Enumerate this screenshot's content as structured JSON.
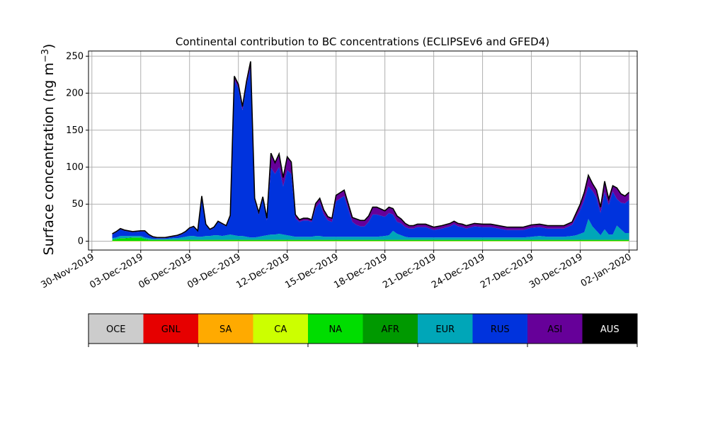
{
  "chart_data": {
    "type": "area",
    "stacked": true,
    "title": "Continental contribution to BC concentrations (ECLIPSEv6 and GFED4)",
    "ylabel_main": "Surface concentration (ng m",
    "ylabel_sup": "−3",
    "ylabel_close": ")",
    "ylim": [
      -12,
      257
    ],
    "yticks": [
      0,
      50,
      100,
      150,
      200,
      250
    ],
    "xlim": [
      "2019-11-29T19:00",
      "2020-01-02T12:00"
    ],
    "xticks": [
      "2019-11-30",
      "2019-12-03",
      "2019-12-06",
      "2019-12-09",
      "2019-12-12",
      "2019-12-15",
      "2019-12-18",
      "2019-12-21",
      "2019-12-24",
      "2019-12-27",
      "2019-12-30",
      "2020-01-02"
    ],
    "xtick_labels": [
      "30-Nov-2019",
      "03-Dec-2019",
      "06-Dec-2019",
      "09-Dec-2019",
      "12-Dec-2019",
      "15-Dec-2019",
      "18-Dec-2019",
      "21-Dec-2019",
      "24-Dec-2019",
      "27-Dec-2019",
      "30-Dec-2019",
      "02-Jan-2020"
    ],
    "grid": true,
    "legend_placement": "colorbar-below",
    "x": [
      "2019-12-01T06:00",
      "2019-12-01T12:00",
      "2019-12-01T18:00",
      "2019-12-02T00:00",
      "2019-12-02T12:00",
      "2019-12-03T00:00",
      "2019-12-03T06:00",
      "2019-12-03T12:00",
      "2019-12-03T18:00",
      "2019-12-04T00:00",
      "2019-12-04T12:00",
      "2019-12-05T00:00",
      "2019-12-05T06:00",
      "2019-12-05T12:00",
      "2019-12-05T18:00",
      "2019-12-06T00:00",
      "2019-12-06T06:00",
      "2019-12-06T12:00",
      "2019-12-06T18:00",
      "2019-12-07T00:00",
      "2019-12-07T06:00",
      "2019-12-07T12:00",
      "2019-12-07T18:00",
      "2019-12-08T00:00",
      "2019-12-08T06:00",
      "2019-12-08T12:00",
      "2019-12-08T18:00",
      "2019-12-09T00:00",
      "2019-12-09T06:00",
      "2019-12-09T12:00",
      "2019-12-09T18:00",
      "2019-12-10T00:00",
      "2019-12-10T06:00",
      "2019-12-10T12:00",
      "2019-12-10T18:00",
      "2019-12-11T00:00",
      "2019-12-11T06:00",
      "2019-12-11T12:00",
      "2019-12-11T18:00",
      "2019-12-12T00:00",
      "2019-12-12T06:00",
      "2019-12-12T12:00",
      "2019-12-12T18:00",
      "2019-12-13T00:00",
      "2019-12-13T06:00",
      "2019-12-13T12:00",
      "2019-12-13T18:00",
      "2019-12-14T00:00",
      "2019-12-14T06:00",
      "2019-12-14T12:00",
      "2019-12-14T18:00",
      "2019-12-15T00:00",
      "2019-12-15T12:00",
      "2019-12-16T00:00",
      "2019-12-16T06:00",
      "2019-12-16T12:00",
      "2019-12-16T18:00",
      "2019-12-17T00:00",
      "2019-12-17T06:00",
      "2019-12-17T12:00",
      "2019-12-18T00:00",
      "2019-12-18T06:00",
      "2019-12-18T12:00",
      "2019-12-18T18:00",
      "2019-12-19T00:00",
      "2019-12-19T06:00",
      "2019-12-19T12:00",
      "2019-12-19T18:00",
      "2019-12-20T00:00",
      "2019-12-20T12:00",
      "2019-12-21T00:00",
      "2019-12-21T12:00",
      "2019-12-22T00:00",
      "2019-12-22T06:00",
      "2019-12-22T12:00",
      "2019-12-22T18:00",
      "2019-12-23T00:00",
      "2019-12-23T12:00",
      "2019-12-24T00:00",
      "2019-12-24T12:00",
      "2019-12-25T00:00",
      "2019-12-25T12:00",
      "2019-12-26T00:00",
      "2019-12-26T12:00",
      "2019-12-27T00:00",
      "2019-12-27T12:00",
      "2019-12-28T00:00",
      "2019-12-28T12:00",
      "2019-12-29T00:00",
      "2019-12-29T12:00",
      "2019-12-29T18:00",
      "2019-12-30T00:00",
      "2019-12-30T06:00",
      "2019-12-30T12:00",
      "2019-12-30T18:00",
      "2019-12-31T00:00",
      "2019-12-31T06:00",
      "2019-12-31T12:00",
      "2019-12-31T18:00",
      "2020-01-01T00:00",
      "2020-01-01T06:00",
      "2020-01-01T12:00",
      "2020-01-01T18:00",
      "2020-01-02T00:00"
    ],
    "series": [
      {
        "name": "OCE",
        "color": "#cccccc",
        "values": [
          0,
          0,
          0,
          0,
          0,
          0,
          0,
          0,
          0,
          0,
          0,
          0,
          0,
          0,
          0,
          0,
          0,
          0,
          0,
          0,
          0,
          0,
          0,
          0,
          0,
          0,
          0,
          0,
          0,
          0,
          0,
          0,
          0,
          0,
          0,
          0,
          0,
          0,
          0,
          0,
          0,
          0,
          0,
          0,
          0,
          0,
          0,
          0,
          0,
          0,
          0,
          0,
          0,
          0,
          0,
          0,
          0,
          0,
          0,
          0,
          0,
          0,
          0,
          0,
          0,
          0,
          0,
          0,
          0,
          0,
          0,
          0,
          0,
          0,
          0,
          0,
          0,
          0,
          0,
          0,
          0,
          0,
          0,
          0,
          0,
          0,
          0,
          0,
          0,
          0,
          0,
          0,
          0,
          0,
          0,
          0,
          0,
          0,
          0,
          0,
          0,
          0,
          0,
          0
        ]
      },
      {
        "name": "GNL",
        "color": "#e60000",
        "values": [
          0,
          0,
          0,
          0,
          0,
          0,
          0,
          0,
          0,
          0,
          0,
          0,
          0,
          0,
          0,
          0,
          0,
          0,
          0,
          0,
          0,
          0,
          0,
          0,
          0,
          0,
          0,
          0,
          0,
          0,
          0,
          0,
          0,
          0,
          0,
          0,
          0,
          0,
          0,
          0,
          0,
          0,
          0,
          0,
          0,
          0,
          0,
          0,
          0,
          0,
          0,
          0,
          0,
          0,
          0,
          0,
          0,
          0,
          0,
          0,
          0,
          0,
          0,
          0,
          0,
          0,
          0,
          0,
          0,
          0,
          0,
          0,
          0,
          0,
          0,
          0,
          0,
          0,
          0,
          0,
          0,
          0,
          0,
          0,
          0,
          0,
          0,
          0,
          0,
          0,
          0,
          0,
          0,
          0,
          0,
          0,
          0,
          0,
          0,
          0,
          0,
          0,
          0,
          0
        ]
      },
      {
        "name": "SA",
        "color": "#ffaa00",
        "values": [
          0,
          0,
          0,
          0,
          0,
          0,
          0,
          0,
          0,
          0,
          0,
          0,
          0,
          0,
          0,
          0,
          0,
          0,
          0,
          0,
          0,
          0,
          0,
          0,
          0,
          0,
          0,
          0,
          0,
          0,
          0,
          0,
          0,
          0,
          0,
          0,
          0,
          0,
          0,
          0,
          0,
          0,
          0,
          0,
          0,
          0,
          0,
          0,
          0,
          0,
          0,
          0,
          0,
          0,
          0,
          0,
          0,
          0,
          0,
          0,
          0,
          0,
          0,
          0,
          0,
          0,
          0,
          0,
          0,
          0,
          0,
          0,
          0,
          0,
          0,
          0,
          0,
          0,
          0,
          0,
          0,
          0,
          0,
          0,
          0,
          0,
          0,
          0,
          0,
          0,
          0,
          0,
          0,
          0,
          0,
          0,
          0,
          0,
          0,
          0,
          0,
          0,
          0,
          0
        ]
      },
      {
        "name": "CA",
        "color": "#ccff00",
        "values": [
          0.5,
          0.5,
          0.5,
          0.5,
          0.5,
          0.5,
          0.5,
          0.5,
          0.5,
          0.5,
          0.5,
          0.5,
          0.5,
          0.5,
          0.5,
          0.5,
          0.5,
          0.5,
          0.5,
          0.5,
          0.5,
          0.5,
          0.5,
          0.5,
          0.5,
          0.5,
          0.5,
          0.5,
          0.5,
          0.5,
          0.5,
          0.5,
          0.5,
          0.5,
          0.5,
          0.5,
          0.5,
          0.5,
          0.5,
          0.5,
          0.5,
          0.5,
          0.5,
          0.5,
          0.5,
          0.5,
          0.5,
          0.5,
          0.5,
          0.5,
          0.5,
          0.5,
          0.5,
          0.5,
          0.5,
          0.5,
          0.5,
          0.5,
          0.5,
          0.5,
          0.5,
          0.5,
          0.5,
          0.5,
          0.5,
          0.5,
          0.5,
          0.5,
          0.5,
          0.5,
          0.5,
          0.5,
          0.5,
          0.5,
          0.5,
          0.5,
          0.5,
          0.5,
          0.5,
          0.5,
          0.5,
          0.5,
          0.5,
          0.5,
          0.5,
          0.5,
          0.5,
          0.5,
          0.5,
          0.5,
          0.5,
          0.5,
          0.5,
          0.5,
          0.5,
          0.5,
          0.5,
          0.5,
          0.5,
          0.5,
          0.5,
          0.5,
          0.5,
          0.5
        ]
      },
      {
        "name": "NA",
        "color": "#00dd00",
        "values": [
          1,
          2,
          3,
          3,
          4,
          4,
          2,
          1,
          1,
          1,
          1,
          1,
          1,
          1,
          1,
          1,
          1,
          1,
          1,
          1,
          1,
          1,
          1,
          1,
          1,
          1,
          1,
          1,
          1,
          1,
          1,
          1,
          1,
          1,
          1,
          1,
          1,
          1,
          1,
          1,
          1,
          1,
          1,
          1,
          1,
          1,
          1,
          1,
          1,
          1,
          1,
          1,
          1,
          1,
          1,
          1,
          1,
          1,
          1,
          1,
          1,
          1,
          1,
          1,
          1,
          1,
          1,
          1,
          1,
          1,
          1,
          1,
          1,
          1,
          1,
          1,
          1,
          1,
          1,
          1,
          1,
          1,
          1,
          1,
          1,
          1,
          1,
          1,
          1,
          1,
          1,
          1,
          1,
          1,
          1,
          1,
          1,
          1,
          1,
          1,
          1,
          1,
          1,
          1
        ]
      },
      {
        "name": "AFR",
        "color": "#009900",
        "values": [
          0.5,
          0.5,
          0.5,
          0.5,
          0.5,
          0.5,
          0.5,
          0.5,
          0.5,
          0.5,
          0.5,
          0.5,
          0.5,
          0.5,
          0.5,
          0.5,
          0.5,
          0.5,
          0.5,
          0.5,
          0.5,
          0.5,
          0.5,
          0.5,
          0.5,
          0.5,
          0.5,
          0.5,
          0.5,
          0.5,
          0.5,
          0.5,
          0.5,
          0.5,
          0.5,
          0.5,
          0.5,
          0.5,
          0.5,
          0.5,
          0.5,
          0.5,
          0.5,
          0.5,
          0.5,
          0.5,
          0.5,
          0.5,
          0.5,
          0.5,
          0.5,
          0.5,
          0.5,
          0.5,
          0.5,
          0.5,
          0.5,
          0.5,
          0.5,
          0.5,
          0.5,
          0.5,
          0.5,
          0.5,
          0.5,
          0.5,
          0.5,
          0.5,
          0.5,
          0.5,
          0.5,
          0.5,
          0.5,
          0.5,
          0.5,
          0.5,
          0.5,
          0.5,
          0.5,
          0.5,
          0.5,
          0.5,
          0.5,
          0.5,
          0.5,
          0.5,
          0.5,
          0.5,
          0.5,
          0.5,
          0.5,
          0.5,
          0.5,
          0.5,
          0.5,
          0.5,
          0.5,
          0.5,
          0.5,
          0.5,
          0.5,
          0.5,
          0.5,
          0.5
        ]
      },
      {
        "name": "EUR",
        "color": "#00a6b8",
        "values": [
          2,
          2,
          3,
          3,
          2,
          2,
          2,
          2,
          1,
          1,
          1,
          2,
          2,
          3,
          4,
          5,
          5,
          4,
          4,
          5,
          5,
          6,
          6,
          5,
          6,
          7,
          6,
          5,
          5,
          4,
          3,
          3,
          4,
          5,
          6,
          7,
          7,
          8,
          7,
          6,
          5,
          4,
          4,
          4,
          4,
          4,
          5,
          5,
          4,
          4,
          4,
          4,
          4,
          4,
          4,
          4,
          4,
          4,
          4,
          4,
          5,
          6,
          12,
          8,
          6,
          4,
          3,
          3,
          3,
          3,
          3,
          3,
          3,
          3,
          3,
          3,
          3,
          3,
          3,
          3,
          3,
          3,
          3,
          3,
          4,
          5,
          4,
          4,
          4,
          5,
          6,
          8,
          10,
          28,
          18,
          12,
          6,
          14,
          7,
          7,
          19,
          14,
          9,
          9
        ]
      },
      {
        "name": "RUS",
        "color": "#0033dd",
        "values": [
          5,
          7,
          9,
          7,
          5,
          6,
          8,
          4,
          2,
          1,
          1,
          2,
          3,
          4,
          6,
          10,
          12,
          7,
          50,
          15,
          8,
          10,
          18,
          16,
          12,
          25,
          210,
          200,
          170,
          205,
          230,
          50,
          30,
          50,
          20,
          90,
          82,
          90,
          65,
          88,
          84,
          25,
          20,
          22,
          22,
          20,
          38,
          45,
          30,
          22,
          20,
          48,
          55,
          20,
          16,
          14,
          14,
          20,
          30,
          30,
          26,
          30,
          22,
          16,
          16,
          13,
          12,
          12,
          14,
          14,
          10,
          12,
          15,
          18,
          15,
          14,
          12,
          15,
          14,
          14,
          12,
          10,
          10,
          10,
          12,
          12,
          11,
          11,
          11,
          15,
          24,
          32,
          44,
          44,
          48,
          45,
          30,
          50,
          40,
          58,
          36,
          36,
          40,
          45
        ]
      },
      {
        "name": "ASI",
        "color": "#660099",
        "values": [
          1,
          1,
          1,
          1,
          1,
          1,
          1,
          1,
          1,
          1,
          1,
          1,
          1,
          1,
          1,
          1,
          1,
          1,
          5,
          1,
          1,
          1,
          1,
          1,
          1,
          1,
          5,
          5,
          5,
          5,
          8,
          3,
          3,
          3,
          3,
          20,
          15,
          18,
          12,
          18,
          16,
          5,
          3,
          3,
          3,
          3,
          6,
          6,
          6,
          5,
          5,
          8,
          8,
          6,
          8,
          8,
          8,
          8,
          10,
          10,
          8,
          8,
          8,
          8,
          6,
          5,
          4,
          4,
          4,
          4,
          4,
          4,
          4,
          4,
          4,
          4,
          4,
          4,
          4,
          4,
          4,
          4,
          4,
          4,
          4,
          4,
          4,
          4,
          4,
          4,
          6,
          8,
          10,
          15,
          10,
          10,
          8,
          15,
          8,
          8,
          15,
          12,
          10,
          10
        ]
      },
      {
        "name": "AUS",
        "color": "#000000",
        "values": [
          0,
          0,
          0,
          0,
          0,
          0,
          0,
          0,
          0,
          0,
          0,
          0,
          0,
          0,
          0,
          0,
          0,
          0,
          0,
          0,
          0,
          0,
          0,
          0,
          0,
          0,
          0,
          0,
          0,
          0,
          0,
          0,
          0,
          0,
          0,
          0,
          0,
          0,
          0,
          0,
          0,
          0,
          0,
          0,
          0,
          0,
          0,
          0,
          0,
          0,
          0,
          0,
          0,
          0,
          0,
          0,
          0,
          0,
          0,
          0,
          0,
          0,
          0,
          0,
          0,
          0,
          0,
          0,
          0,
          0,
          0,
          0,
          0,
          0,
          0,
          0,
          0,
          0,
          0,
          0,
          0,
          0,
          0,
          0,
          0,
          0,
          0,
          0,
          0,
          0,
          0,
          0,
          0,
          0,
          0,
          0,
          0,
          0,
          0,
          0,
          0,
          0,
          0,
          0
        ]
      }
    ]
  }
}
